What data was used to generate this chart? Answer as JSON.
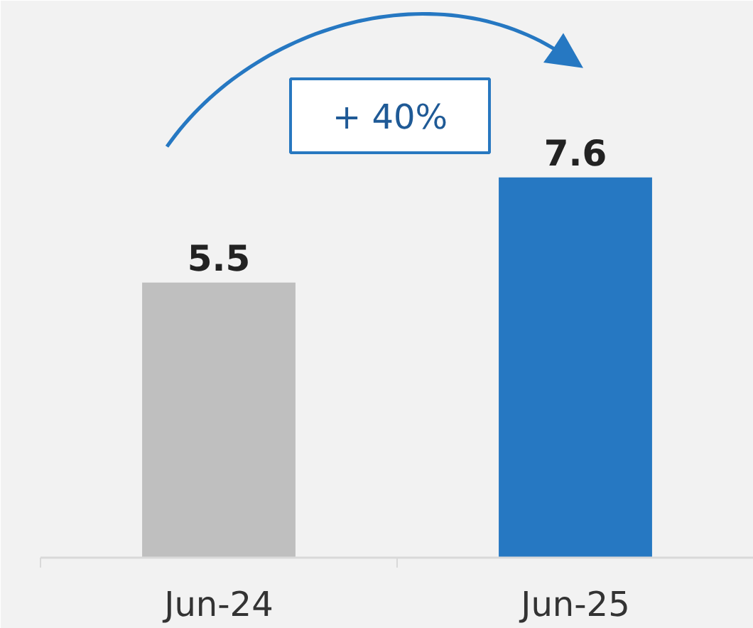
{
  "chart_data": {
    "type": "bar",
    "categories": [
      "Jun-24",
      "Jun-25"
    ],
    "values": [
      5.5,
      7.6
    ],
    "colors": [
      "#bfbfbf",
      "#2678c2"
    ],
    "data_labels": true,
    "tick_labels": "x",
    "annotations": [
      "+ 40%"
    ]
  }
}
